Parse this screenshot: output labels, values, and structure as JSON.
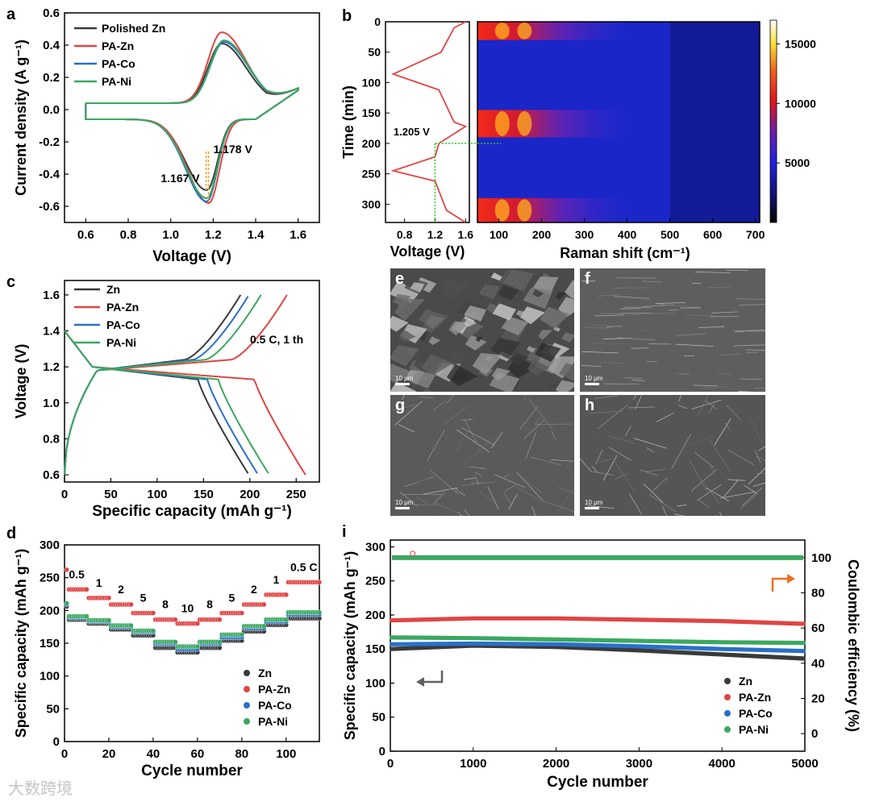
{
  "watermark": "大数跨境",
  "chart_data": [
    {
      "panel": "a",
      "type": "line",
      "title": "",
      "xlabel": "Voltage (V)",
      "ylabel": "Current density (A g⁻¹)",
      "xlim": [
        0.5,
        1.7
      ],
      "ylim": [
        -0.7,
        0.6
      ],
      "xticks": [
        "0.6",
        "0.8",
        "1.0",
        "1.2",
        "1.4",
        "1.6"
      ],
      "yticks": [
        "0.6",
        "0.4",
        "0.2",
        "0.0",
        "-0.2",
        "-0.4",
        "-0.6"
      ],
      "legend": [
        "Polished Zn",
        "PA-Zn",
        "PA-Co",
        "PA-Ni"
      ],
      "colors": [
        "#3a3a3a",
        "#e04545",
        "#2a70c8",
        "#3aa860"
      ],
      "series": [
        {
          "name": "Polished Zn",
          "cathodic_peak": [
            1.17,
            -0.5
          ],
          "anodic_peak": [
            1.24,
            0.39
          ]
        },
        {
          "name": "PA-Zn",
          "cathodic_peak": [
            1.18,
            -0.58
          ],
          "anodic_peak": [
            1.24,
            0.46
          ]
        },
        {
          "name": "PA-Co",
          "cathodic_peak": [
            1.17,
            -0.57
          ],
          "anodic_peak": [
            1.25,
            0.4
          ]
        },
        {
          "name": "PA-Ni",
          "cathodic_peak": [
            1.17,
            -0.55
          ],
          "anodic_peak": [
            1.25,
            0.41
          ]
        }
      ],
      "annotations": [
        "1.167 V",
        "1.178 V"
      ]
    },
    {
      "panel": "b",
      "type": "heatmap",
      "left_xlabel": "Voltage (V)",
      "left_xticks": [
        "0.8",
        "1.2",
        "1.6"
      ],
      "ylabel": "Time (min)",
      "yticks": [
        "0",
        "50",
        "100",
        "150",
        "200",
        "250",
        "300"
      ],
      "ylim": [
        0,
        330
      ],
      "voltage_profile": [
        [
          1.6,
          0
        ],
        [
          1.45,
          10
        ],
        [
          1.28,
          50
        ],
        [
          0.65,
          86
        ],
        [
          1.25,
          112
        ],
        [
          1.45,
          165
        ],
        [
          1.6,
          172
        ],
        [
          1.25,
          200
        ],
        [
          1.2,
          222
        ],
        [
          0.65,
          245
        ],
        [
          1.2,
          262
        ],
        [
          1.35,
          310
        ],
        [
          1.6,
          330
        ]
      ],
      "annotation": "1.205 V",
      "xlabel": "Raman shift (cm⁻¹)",
      "xticks": [
        "100",
        "200",
        "300",
        "400",
        "500",
        "600",
        "700"
      ],
      "xlim": [
        50,
        710
      ],
      "colorbar_ticks": [
        "15000",
        "10000",
        "5000"
      ],
      "colorbar_range": [
        0,
        17000
      ]
    },
    {
      "panel": "c",
      "type": "line",
      "xlabel": "Specific capacity (mAh g⁻¹)",
      "ylabel": "Voltage (V)",
      "xlim": [
        0,
        275
      ],
      "ylim": [
        0.56,
        1.68
      ],
      "xticks": [
        "0",
        "50",
        "100",
        "150",
        "200",
        "250"
      ],
      "yticks": [
        "0.6",
        "0.8",
        "1.0",
        "1.2",
        "1.4",
        "1.6"
      ],
      "legend": [
        "Zn",
        "PA-Zn",
        "PA-Co",
        "PA-Ni"
      ],
      "colors": [
        "#3a3a3a",
        "#e04545",
        "#2a70c8",
        "#3aa860"
      ],
      "condition": "0.5 C, 1 th",
      "discharge_capacity": [
        199,
        260,
        209,
        221
      ],
      "charge_capacity": [
        190,
        240,
        199,
        212
      ]
    },
    {
      "panel": "d",
      "type": "scatter",
      "xlabel": "Cycle number",
      "ylabel": "Specific capacity (mAh g⁻¹)",
      "xlim": [
        0,
        115
      ],
      "ylim": [
        0,
        300
      ],
      "xticks": [
        "0",
        "20",
        "40",
        "60",
        "80",
        "100"
      ],
      "yticks": [
        "0",
        "50",
        "100",
        "150",
        "200",
        "250",
        "300"
      ],
      "legend": [
        "Zn",
        "PA-Zn",
        "PA-Co",
        "PA-Ni"
      ],
      "colors": [
        "#3a3a3a",
        "#e04545",
        "#2a70c8",
        "#3aa860"
      ],
      "rate_labels": [
        "0.5",
        "1",
        "2",
        "5",
        "8",
        "10",
        "8",
        "5",
        "2",
        "1",
        "0.5 C"
      ],
      "segments": [
        [
          1,
          10
        ],
        [
          11,
          20
        ],
        [
          21,
          30
        ],
        [
          31,
          40
        ],
        [
          41,
          50
        ],
        [
          51,
          60
        ],
        [
          61,
          70
        ],
        [
          71,
          80
        ],
        [
          81,
          90
        ],
        [
          91,
          100
        ],
        [
          101,
          115
        ]
      ],
      "series": [
        {
          "name": "Zn",
          "values": [
            186,
            180,
            171,
            162,
            143,
            136,
            143,
            154,
            168,
            178,
            188
          ]
        },
        {
          "name": "PA-Zn",
          "values": [
            232,
            219,
            209,
            196,
            186,
            180,
            186,
            196,
            209,
            224,
            243
          ]
        },
        {
          "name": "PA-Co",
          "values": [
            189,
            183,
            175,
            167,
            149,
            141,
            149,
            159,
            173,
            183,
            194
          ]
        },
        {
          "name": "PA-Ni",
          "values": [
            191,
            185,
            177,
            169,
            152,
            145,
            152,
            163,
            176,
            186,
            197
          ]
        }
      ]
    },
    {
      "panel": "i",
      "type": "scatter",
      "xlabel": "Cycle number",
      "ylabel": "Specific capacity (mAh g⁻¹)",
      "y2label": "Coulombic efficiency (%)",
      "xlim": [
        0,
        5000
      ],
      "ylim": [
        0,
        310
      ],
      "y2lim": [
        -10,
        110
      ],
      "xticks": [
        "0",
        "1000",
        "2000",
        "3000",
        "4000",
        "5000"
      ],
      "yticks": [
        "0",
        "50",
        "100",
        "150",
        "200",
        "250",
        "300"
      ],
      "y2ticks": [
        "0",
        "20",
        "40",
        "60",
        "80",
        "100"
      ],
      "legend": [
        "Zn",
        "PA-Zn",
        "PA-Co",
        "PA-Ni"
      ],
      "colors": [
        "#3a3a3a",
        "#e04545",
        "#2a70c8",
        "#3aa860"
      ],
      "series": [
        {
          "name": "Zn",
          "points": [
            [
              0,
              150
            ],
            [
              1000,
              155
            ],
            [
              2000,
              153
            ],
            [
              3000,
              148
            ],
            [
              4000,
              142
            ],
            [
              5000,
              136
            ]
          ]
        },
        {
          "name": "PA-Zn",
          "points": [
            [
              0,
              192
            ],
            [
              1000,
              195
            ],
            [
              2000,
              195
            ],
            [
              3000,
              193
            ],
            [
              4000,
              191
            ],
            [
              5000,
              187
            ]
          ]
        },
        {
          "name": "PA-Co",
          "points": [
            [
              0,
              157
            ],
            [
              1000,
              158
            ],
            [
              2000,
              157
            ],
            [
              3000,
              154
            ],
            [
              4000,
              150
            ],
            [
              5000,
              147
            ]
          ]
        },
        {
          "name": "PA-Ni",
          "points": [
            [
              0,
              167
            ],
            [
              1000,
              166
            ],
            [
              2000,
              164
            ],
            [
              3000,
              162
            ],
            [
              4000,
              160
            ],
            [
              5000,
              159
            ]
          ]
        }
      ],
      "coulombic_efficiency": 100
    }
  ],
  "sem_panels": [
    {
      "label": "e",
      "scale": "10 μm"
    },
    {
      "label": "f",
      "scale": "10 μm"
    },
    {
      "label": "g",
      "scale": "10 μm"
    },
    {
      "label": "h",
      "scale": "10 μm"
    }
  ],
  "panel_letters": [
    "a",
    "b",
    "c",
    "d",
    "i"
  ]
}
